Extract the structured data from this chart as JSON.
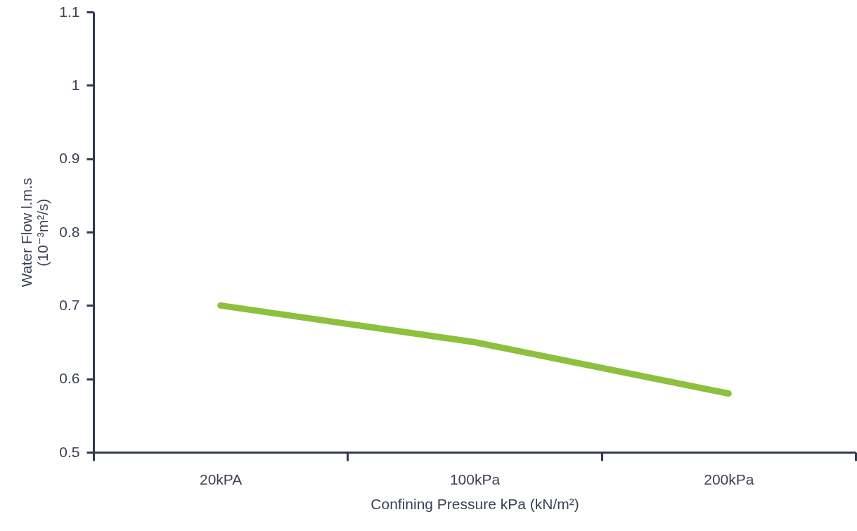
{
  "chart_data": {
    "type": "line",
    "xlabel": "Confining Pressure kPa (kN/m²)",
    "ylabel": "Water Flow l.m.s\n(10⁻³m²/s)",
    "categories": [
      "20kPA",
      "100kPa",
      "200kPa"
    ],
    "series": [
      {
        "color": "#8dc03f",
        "values": [
          0.7,
          0.65,
          0.58
        ]
      }
    ],
    "ylim": [
      0.5,
      1.1
    ],
    "yticks": [
      0.5,
      0.6,
      0.7,
      0.8,
      0.9,
      1,
      1.1
    ],
    "grid": false,
    "marker": "none",
    "line_style": "solid"
  }
}
